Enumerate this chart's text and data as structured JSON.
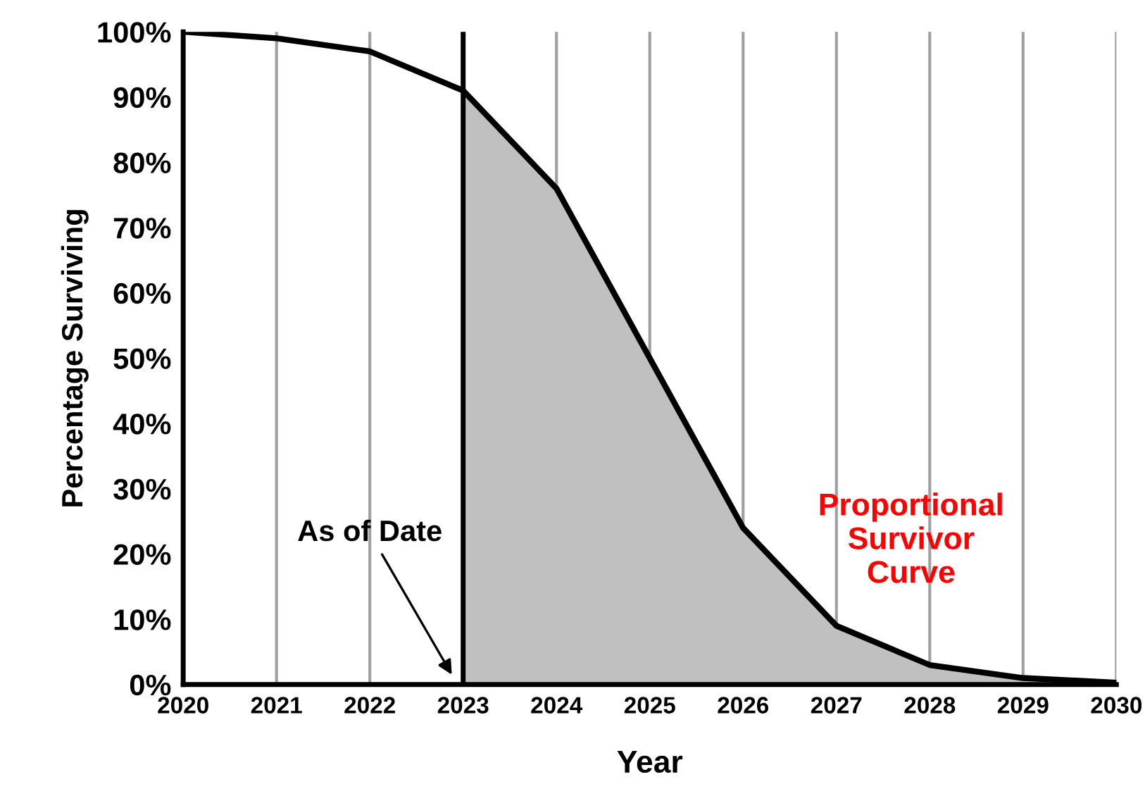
{
  "chart_data": {
    "type": "line",
    "xlabel": "Year",
    "ylabel": "Percentage Surviving",
    "x": [
      2020,
      2021,
      2022,
      2023,
      2024,
      2025,
      2026,
      2027,
      2028,
      2029,
      2030
    ],
    "series": [
      {
        "type": "area",
        "color": "#c0c0c0",
        "x": [
          2023,
          2024,
          2025,
          2026,
          2027,
          2028,
          2029,
          2030
        ],
        "values": [
          91,
          76,
          50,
          24,
          9,
          3,
          1,
          0.3
        ]
      },
      {
        "color": "#000000",
        "values": [
          100,
          99,
          97,
          91,
          76,
          50,
          24,
          9,
          3,
          1,
          0.3
        ]
      }
    ],
    "xlim": [
      2020,
      2030
    ],
    "xticks": [
      2020,
      2021,
      2022,
      2023,
      2024,
      2025,
      2026,
      2027,
      2028,
      2029,
      2030
    ],
    "ylim": [
      0,
      100
    ],
    "yticks": [
      {
        "value": 0,
        "label": "0%"
      },
      {
        "value": 10,
        "label": "10%"
      },
      {
        "value": 20,
        "label": "20%"
      },
      {
        "value": 30,
        "label": "30%"
      },
      {
        "value": 40,
        "label": "40%"
      },
      {
        "value": 50,
        "label": "50%"
      },
      {
        "value": 60,
        "label": "60%"
      },
      {
        "value": 70,
        "label": "70%"
      },
      {
        "value": 80,
        "label": "80%"
      },
      {
        "value": 90,
        "label": "90%"
      },
      {
        "value": 100,
        "label": "100%"
      }
    ],
    "ref_lines": [
      {
        "axis": "x",
        "value": 2023,
        "label": "As of Date",
        "color": "#000000"
      }
    ],
    "annotations": [
      "Proportional\nSurvivor\nCurve"
    ],
    "grid": "x",
    "legend": false,
    "marker": "none",
    "line_style": "solid"
  }
}
